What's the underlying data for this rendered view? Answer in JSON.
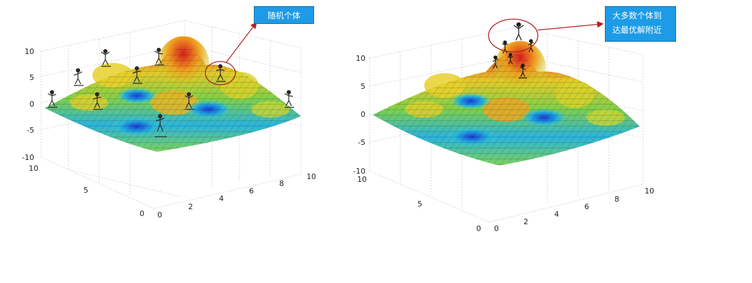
{
  "left_panel": {
    "z_ticks": [
      "10",
      "5",
      "0",
      "-5",
      "-10"
    ],
    "x_ticks": [
      "0",
      "2",
      "4",
      "6",
      "8",
      "10"
    ],
    "y_ticks": [
      "0",
      "5",
      "10"
    ],
    "callout": "随机个体"
  },
  "right_panel": {
    "z_ticks": [
      "10",
      "5",
      "0",
      "-5",
      "-10"
    ],
    "x_ticks": [
      "0",
      "2",
      "4",
      "6",
      "8",
      "10"
    ],
    "y_ticks": [
      "0",
      "5",
      "10"
    ],
    "callout_line1": "大多数个体到",
    "callout_line2": "达最优解附近"
  },
  "colors": {
    "callout_bg": "#1e9be6",
    "annotation": "#b22222",
    "peak": "#d62020",
    "mid": "#d8d82a",
    "low": "#1aa3d8"
  },
  "icons": [
    "person-figure-icon",
    "red-circle-highlight",
    "arrow-annotation"
  ]
}
